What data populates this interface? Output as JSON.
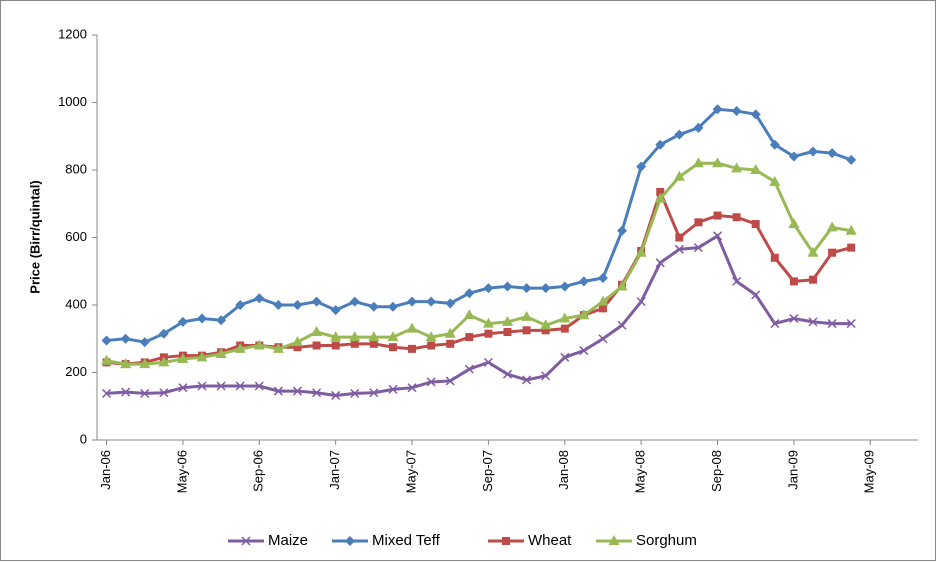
{
  "chart_data": {
    "type": "line",
    "y_label": "Price (Birr/quintal)",
    "categories": [
      "Jan-06",
      null,
      null,
      null,
      "May-06",
      null,
      null,
      null,
      "Sep-06",
      null,
      null,
      null,
      "Jan-07",
      null,
      null,
      null,
      "May-07",
      null,
      null,
      null,
      "Sep-07",
      null,
      null,
      null,
      "Jan-08",
      null,
      null,
      null,
      "May-08",
      null,
      null,
      null,
      "Sep-08",
      null,
      null,
      null,
      "Jan-09",
      null,
      null,
      null,
      "May-09",
      null,
      null
    ],
    "series": [
      {
        "name": "Maize",
        "color": "#7e5ca1",
        "marker": "x",
        "values": [
          138,
          142,
          138,
          140,
          155,
          160,
          160,
          160,
          160,
          145,
          145,
          140,
          132,
          138,
          140,
          150,
          155,
          172,
          175,
          210,
          230,
          195,
          178,
          190,
          245,
          265,
          300,
          340,
          410,
          525,
          565,
          570,
          605,
          470,
          430,
          345,
          360,
          350,
          345,
          345,
          null,
          null,
          null
        ]
      },
      {
        "name": "Mixed Teff",
        "color": "#4a7ebb",
        "marker": "diamond",
        "values": [
          295,
          300,
          290,
          315,
          350,
          360,
          355,
          400,
          420,
          400,
          400,
          410,
          385,
          410,
          395,
          395,
          410,
          410,
          405,
          435,
          450,
          455,
          450,
          450,
          455,
          470,
          480,
          620,
          810,
          875,
          905,
          925,
          980,
          975,
          965,
          875,
          840,
          855,
          850,
          830,
          null,
          null,
          null
        ]
      },
      {
        "name": "Wheat",
        "color": "#be4b48",
        "marker": "square",
        "values": [
          230,
          225,
          230,
          245,
          250,
          250,
          260,
          280,
          280,
          275,
          275,
          280,
          280,
          285,
          285,
          275,
          270,
          280,
          285,
          305,
          315,
          320,
          325,
          325,
          330,
          370,
          390,
          460,
          560,
          735,
          600,
          645,
          665,
          660,
          640,
          540,
          470,
          475,
          555,
          570,
          null,
          null,
          null
        ]
      },
      {
        "name": "Sorghum",
        "color": "#98b954",
        "marker": "triangle",
        "values": [
          235,
          225,
          225,
          230,
          240,
          245,
          255,
          270,
          280,
          270,
          290,
          320,
          305,
          305,
          305,
          305,
          330,
          305,
          315,
          370,
          345,
          350,
          365,
          340,
          360,
          370,
          410,
          455,
          555,
          715,
          780,
          820,
          820,
          805,
          800,
          765,
          640,
          555,
          630,
          620,
          null,
          null,
          null
        ]
      }
    ],
    "ylim": [
      0,
      1200
    ],
    "yticks": [
      0,
      200,
      400,
      600,
      800,
      1000,
      1200
    ],
    "grid": false,
    "legend": "bottom"
  }
}
